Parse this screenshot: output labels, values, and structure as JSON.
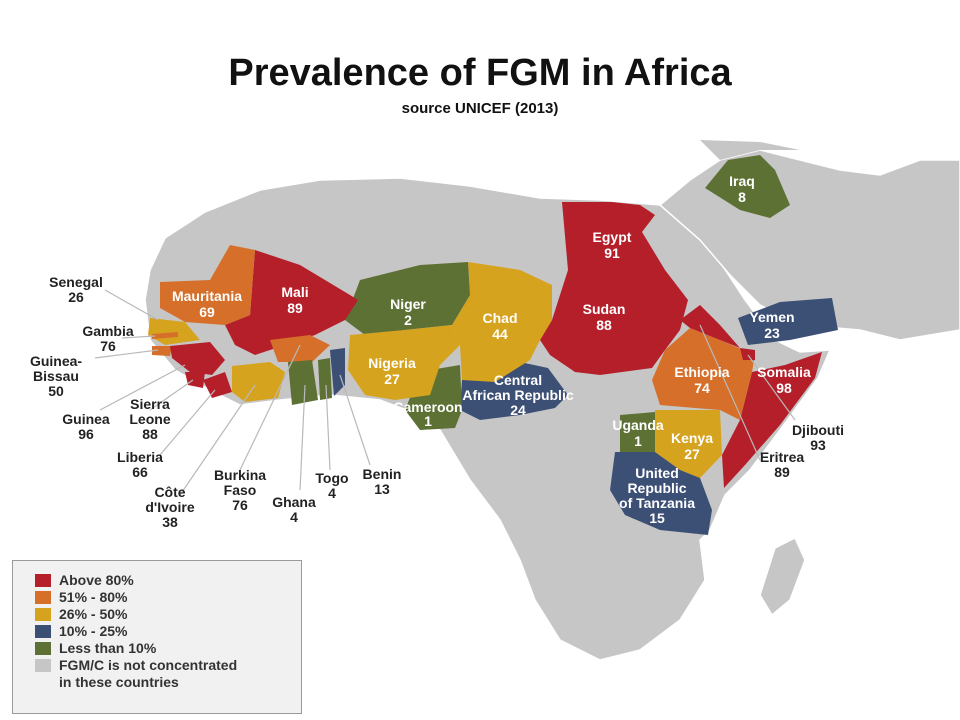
{
  "title": "Prevalence of FGM in Africa",
  "subtitle": "source UNICEF (2013)",
  "colors": {
    "above80": "#b51f2a",
    "p51_80": "#d56f2a",
    "p26_50": "#d6a31e",
    "p10_25": "#3c4f75",
    "lt10": "#5e7135",
    "none": "#c6c6c6"
  },
  "legend": [
    {
      "label": "Above 80%",
      "color": "#b51f2a"
    },
    {
      "label": "51% - 80%",
      "color": "#d56f2a"
    },
    {
      "label": "26% - 50%",
      "color": "#d6a31e"
    },
    {
      "label": "10% - 25%",
      "color": "#3c4f75"
    },
    {
      "label": "Less than 10%",
      "color": "#5e7135"
    },
    {
      "label": "FGM/C is not concentrated",
      "label2": "in these countries",
      "color": "#c6c6c6"
    }
  ],
  "countries": {
    "iraq": {
      "name": "Iraq",
      "value": "8"
    },
    "egypt": {
      "name": "Egypt",
      "value": "91"
    },
    "sudan": {
      "name": "Sudan",
      "value": "88"
    },
    "yemen": {
      "name": "Yemen",
      "value": "23"
    },
    "somalia": {
      "name": "Somalia",
      "value": "98"
    },
    "ethiopia": {
      "name": "Ethiopia",
      "value": "74"
    },
    "kenya": {
      "name": "Kenya",
      "value": "27"
    },
    "uganda": {
      "name": "Uganda",
      "value": "1"
    },
    "tanzania": {
      "name1": "United",
      "name2": "Republic",
      "name3": "of Tanzania",
      "value": "15"
    },
    "car": {
      "name1": "Central",
      "name2": "African Republic",
      "value": "24"
    },
    "cameroon": {
      "name": "Cameroon",
      "value": "1"
    },
    "chad": {
      "name": "Chad",
      "value": "44"
    },
    "niger": {
      "name": "Niger",
      "value": "2"
    },
    "nigeria": {
      "name": "Nigeria",
      "value": "27"
    },
    "mali": {
      "name": "Mali",
      "value": "89"
    },
    "mauritania": {
      "name": "Mauritania",
      "value": "69"
    },
    "senegal": {
      "name": "Senegal",
      "value": "26"
    },
    "gambia": {
      "name": "Gambia",
      "value": "76"
    },
    "guinea_bissau": {
      "name1": "Guinea-",
      "name2": "Bissau",
      "value": "50"
    },
    "guinea": {
      "name": "Guinea",
      "value": "96"
    },
    "sierra_leone": {
      "name1": "Sierra",
      "name2": "Leone",
      "value": "88"
    },
    "liberia": {
      "name": "Liberia",
      "value": "66"
    },
    "cote_divoire": {
      "name1": "Côte",
      "name2": "d'Ivoire",
      "value": "38"
    },
    "burkina_faso": {
      "name1": "Burkina",
      "name2": "Faso",
      "value": "76"
    },
    "ghana": {
      "name": "Ghana",
      "value": "4"
    },
    "togo": {
      "name": "Togo",
      "value": "4"
    },
    "benin": {
      "name": "Benin",
      "value": "13"
    },
    "djibouti": {
      "name": "Djibouti",
      "value": "93"
    },
    "eritrea": {
      "name": "Eritrea",
      "value": "89"
    }
  }
}
